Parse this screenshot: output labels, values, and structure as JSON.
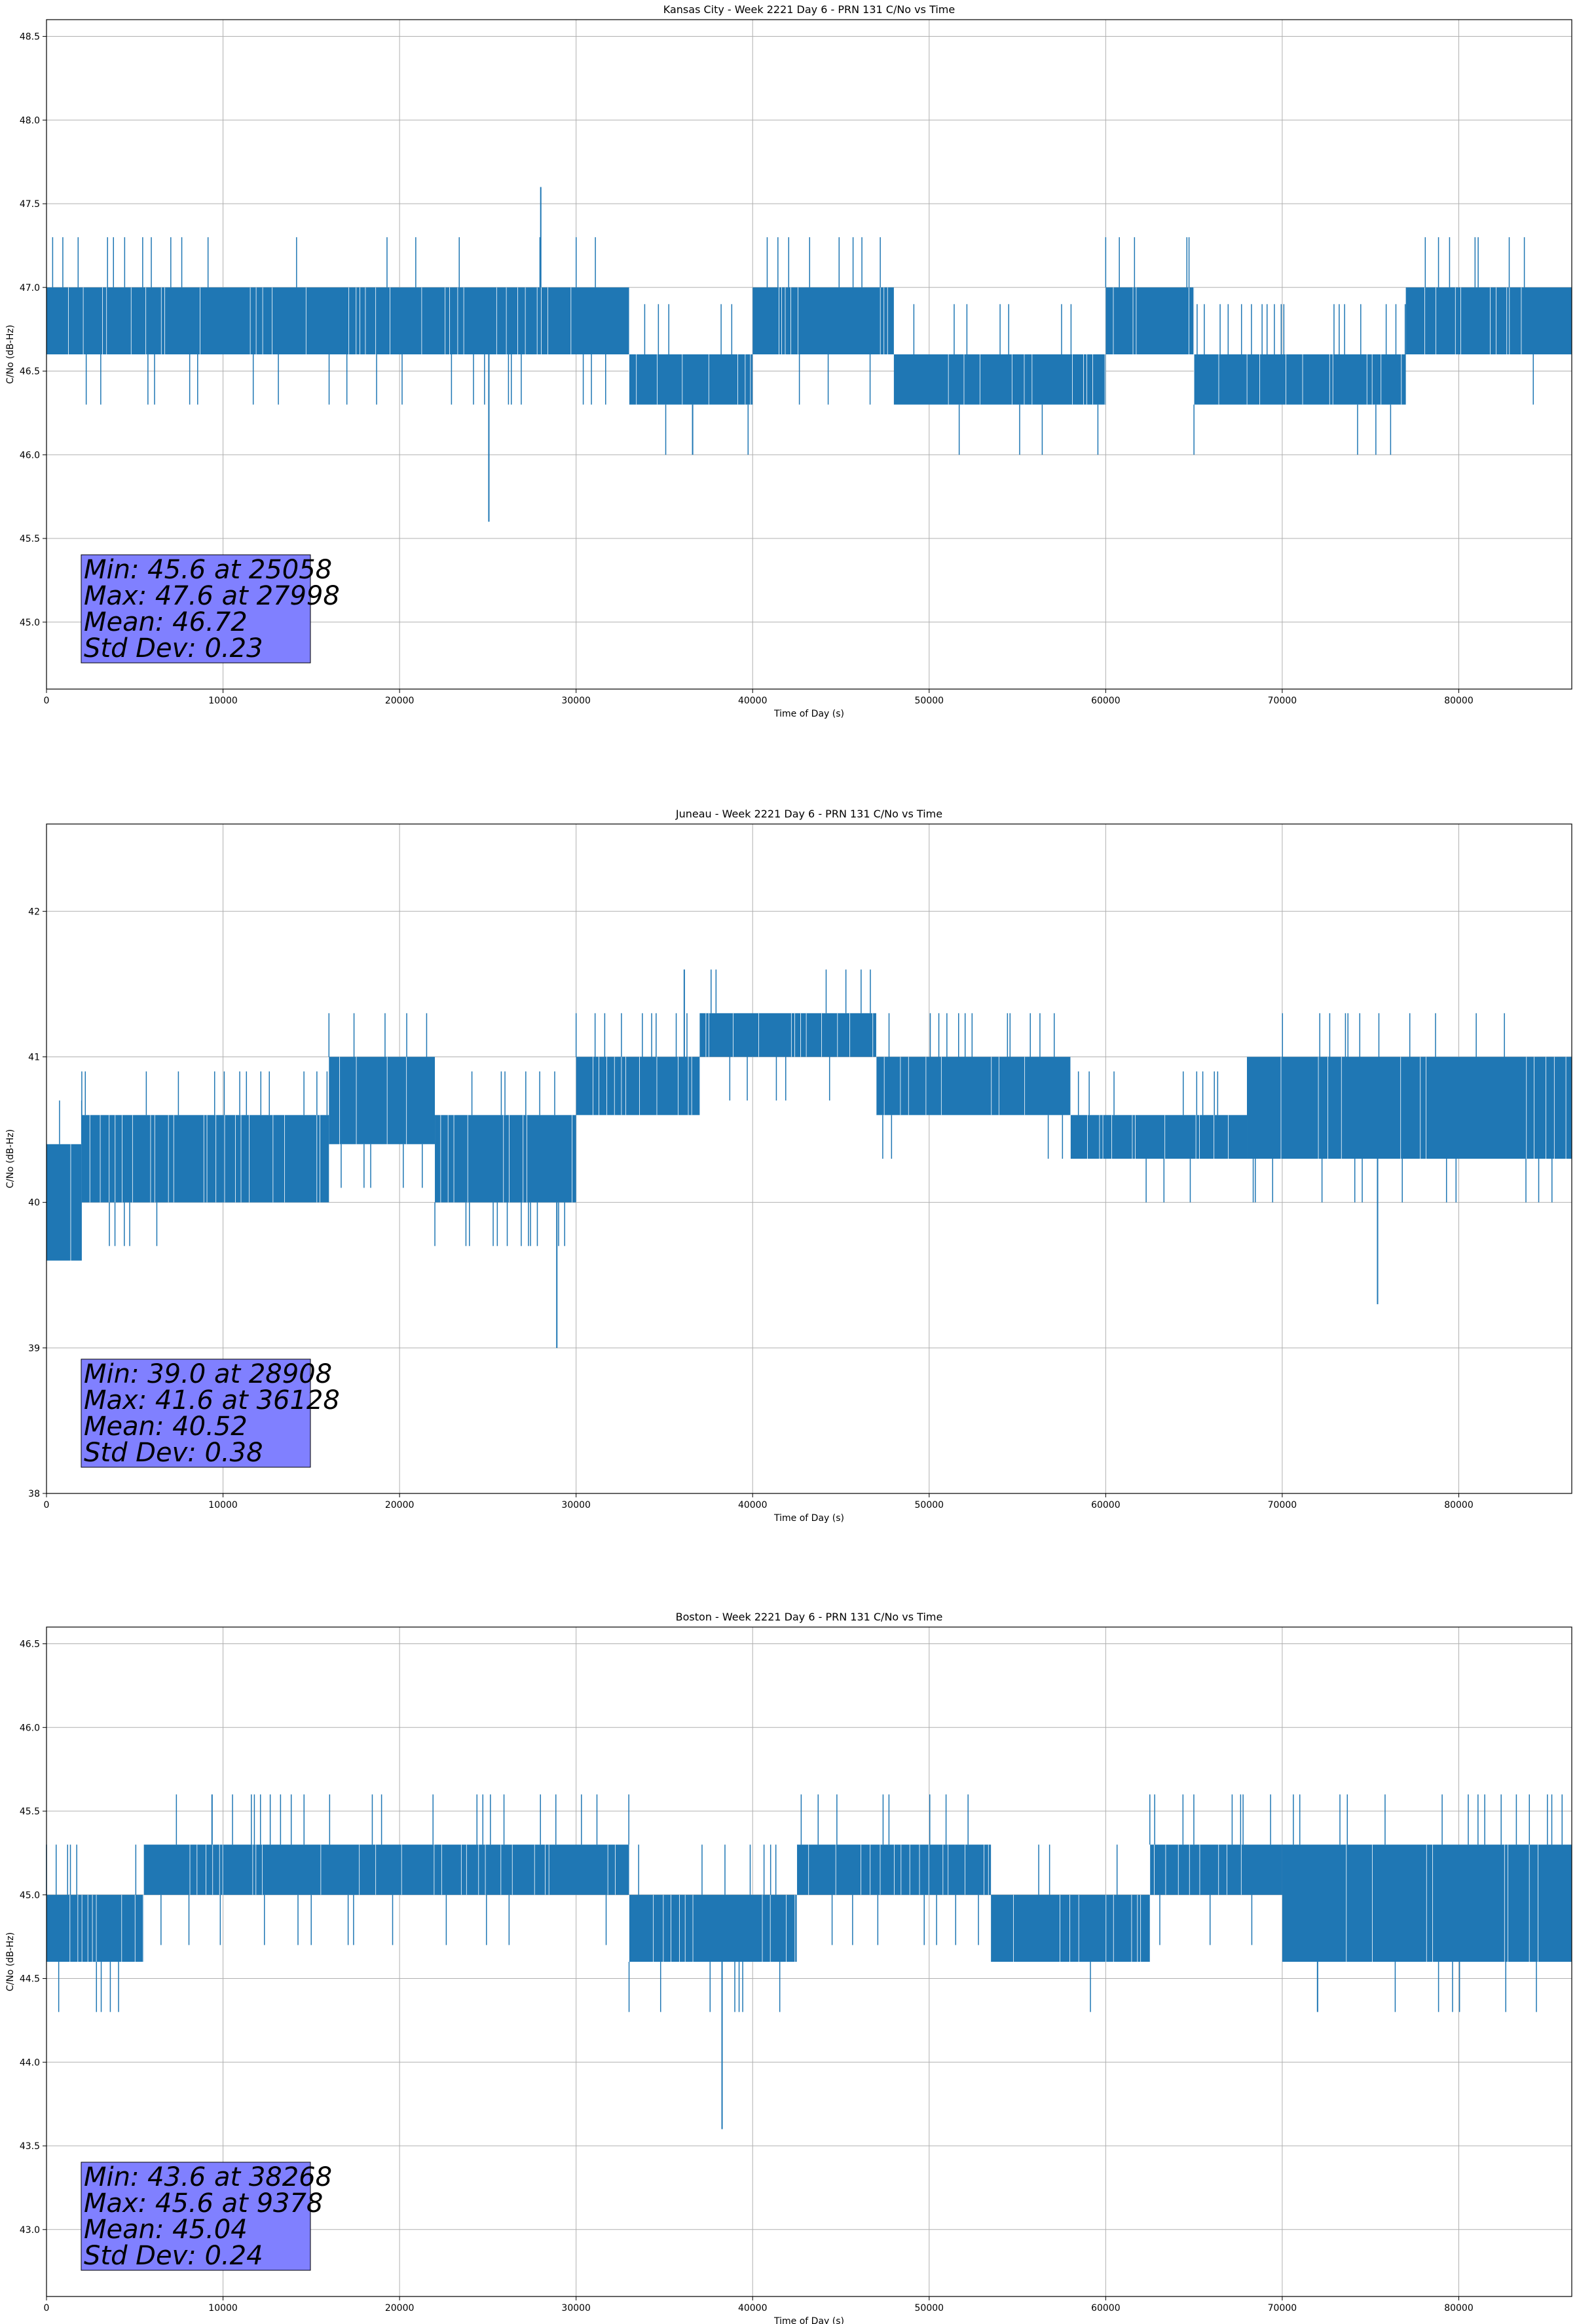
{
  "chart_data": [
    {
      "type": "line",
      "title": "Kansas City - Week 2221 Day 6 - PRN 131 C/No vs Time",
      "xlabel": "Time of Day (s)",
      "ylabel": "C/No (dB-Hz)",
      "xlim": [
        0,
        86400
      ],
      "ylim": [
        44.6,
        48.6
      ],
      "xticks": [
        0,
        10000,
        20000,
        30000,
        40000,
        50000,
        60000,
        70000,
        80000
      ],
      "yticks": [
        45.0,
        45.5,
        46.0,
        46.5,
        47.0,
        47.5,
        48.0,
        48.5
      ],
      "ytick_decimals": 1,
      "grid": true,
      "color": "#1f77b4",
      "segments": [
        {
          "x0": 0,
          "x1": 33000,
          "low": 46.6,
          "high": 47.0
        },
        {
          "x0": 33000,
          "x1": 40000,
          "low": 46.3,
          "high": 46.6
        },
        {
          "x0": 40000,
          "x1": 48000,
          "low": 46.6,
          "high": 47.0
        },
        {
          "x0": 48000,
          "x1": 60000,
          "low": 46.3,
          "high": 46.6
        },
        {
          "x0": 60000,
          "x1": 65000,
          "low": 46.6,
          "high": 47.0
        },
        {
          "x0": 65000,
          "x1": 77000,
          "low": 46.3,
          "high": 46.6
        },
        {
          "x0": 77000,
          "x1": 86400,
          "low": 46.6,
          "high": 47.0
        }
      ],
      "spikes": [
        {
          "x": 25058,
          "y": 45.6
        },
        {
          "x": 27998,
          "y": 47.6
        },
        {
          "x": 36600,
          "y": 46.0
        }
      ],
      "stats": {
        "lines": [
          "Min: 45.6 at 25058",
          "Max: 47.6 at 27998",
          "Mean: 46.72",
          "Std Dev: 0.23"
        ],
        "box_color": "#8080ff"
      }
    },
    {
      "type": "line",
      "title": "Juneau - Week 2221 Day 6 - PRN 131 C/No vs Time",
      "xlabel": "Time of Day (s)",
      "ylabel": "C/No (dB-Hz)",
      "xlim": [
        0,
        86400
      ],
      "ylim": [
        38.0,
        42.6
      ],
      "xticks": [
        0,
        10000,
        20000,
        30000,
        40000,
        50000,
        60000,
        70000,
        80000
      ],
      "yticks": [
        38,
        39,
        40,
        41,
        42
      ],
      "ytick_decimals": 0,
      "grid": true,
      "color": "#1f77b4",
      "segments": [
        {
          "x0": 0,
          "x1": 2000,
          "low": 39.6,
          "high": 40.4
        },
        {
          "x0": 2000,
          "x1": 16000,
          "low": 40.0,
          "high": 40.6
        },
        {
          "x0": 16000,
          "x1": 22000,
          "low": 40.4,
          "high": 41.0
        },
        {
          "x0": 22000,
          "x1": 30000,
          "low": 40.0,
          "high": 40.6
        },
        {
          "x0": 30000,
          "x1": 37000,
          "low": 40.6,
          "high": 41.0
        },
        {
          "x0": 37000,
          "x1": 47000,
          "low": 41.0,
          "high": 41.3
        },
        {
          "x0": 47000,
          "x1": 58000,
          "low": 40.6,
          "high": 41.0
        },
        {
          "x0": 58000,
          "x1": 68000,
          "low": 40.3,
          "high": 40.6
        },
        {
          "x0": 68000,
          "x1": 86400,
          "low": 40.3,
          "high": 41.0
        }
      ],
      "spikes": [
        {
          "x": 28908,
          "y": 39.0
        },
        {
          "x": 36128,
          "y": 41.6
        },
        {
          "x": 75400,
          "y": 39.3
        }
      ],
      "stats": {
        "lines": [
          "Min: 39.0 at 28908",
          "Max: 41.6 at 36128",
          "Mean: 40.52",
          "Std Dev: 0.38"
        ],
        "box_color": "#8080ff"
      }
    },
    {
      "type": "line",
      "title": "Boston - Week 2221 Day 6 - PRN 131 C/No vs Time",
      "xlabel": "Time of Day (s)",
      "ylabel": "C/No (dB-Hz)",
      "xlim": [
        0,
        86400
      ],
      "ylim": [
        42.6,
        46.6
      ],
      "xticks": [
        0,
        10000,
        20000,
        30000,
        40000,
        50000,
        60000,
        70000,
        80000
      ],
      "yticks": [
        43.0,
        43.5,
        44.0,
        44.5,
        45.0,
        45.5,
        46.0,
        46.5
      ],
      "ytick_decimals": 1,
      "grid": true,
      "color": "#1f77b4",
      "segments": [
        {
          "x0": 0,
          "x1": 5500,
          "low": 44.6,
          "high": 45.0
        },
        {
          "x0": 5500,
          "x1": 33000,
          "low": 45.0,
          "high": 45.3
        },
        {
          "x0": 33000,
          "x1": 42500,
          "low": 44.6,
          "high": 45.0
        },
        {
          "x0": 42500,
          "x1": 53500,
          "low": 45.0,
          "high": 45.3
        },
        {
          "x0": 53500,
          "x1": 62500,
          "low": 44.6,
          "high": 45.0
        },
        {
          "x0": 62500,
          "x1": 70000,
          "low": 45.0,
          "high": 45.3
        },
        {
          "x0": 70000,
          "x1": 86400,
          "low": 44.6,
          "high": 45.3
        }
      ],
      "spikes": [
        {
          "x": 38268,
          "y": 43.6
        },
        {
          "x": 9378,
          "y": 45.6
        },
        {
          "x": 72000,
          "y": 44.3
        }
      ],
      "stats": {
        "lines": [
          "Min: 43.6 at 38268",
          "Max: 45.6 at 9378",
          "Mean: 45.04",
          "Std Dev: 0.24"
        ],
        "box_color": "#8080ff"
      }
    }
  ]
}
